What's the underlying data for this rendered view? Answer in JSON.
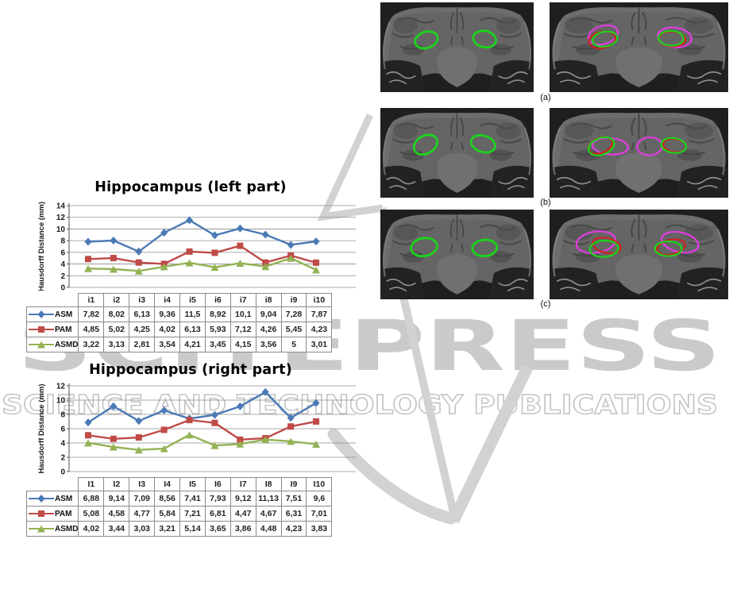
{
  "figure": {
    "left_column_heading_1": "Hippocampus (left part)",
    "left_column_heading_2": "Hippocampus (right part)"
  },
  "chart_data": [
    {
      "type": "line",
      "title": "Hippocampus (left part)",
      "xlabel": "",
      "ylabel": "Hausdorff Distance (mm)",
      "ylim": [
        0,
        14
      ],
      "ytick_step": 2,
      "grid": true,
      "legend_position": "table-left",
      "decimal_separator": ",",
      "categories": [
        "i1",
        "i2",
        "i3",
        "i4",
        "i5",
        "i6",
        "i7",
        "i8",
        "i9",
        "i10"
      ],
      "series": [
        {
          "name": "ASM",
          "color": "#4a7ab5",
          "marker": "diamond",
          "values": [
            "7,82",
            "8,02",
            "6,13",
            "9,36",
            "11,5",
            "8,92",
            "10,1",
            "9,04",
            "7,28",
            "7,87"
          ]
        },
        {
          "name": "PAM",
          "color": "#bf4b47",
          "marker": "square",
          "values": [
            "4,85",
            "5,02",
            "4,25",
            "4,02",
            "6,13",
            "5,93",
            "7,12",
            "4,26",
            "5,45",
            "4,23"
          ]
        },
        {
          "name": "ASMD",
          "color": "#93b254",
          "marker": "triangle",
          "values": [
            "3,22",
            "3,13",
            "2,81",
            "3,54",
            "4,21",
            "3,45",
            "4,15",
            "3,56",
            "5",
            "3,01"
          ]
        }
      ]
    },
    {
      "type": "line",
      "title": "Hippocampus (right part)",
      "xlabel": "",
      "ylabel": "Hausdorff Distance (mm)",
      "ylim": [
        0,
        12
      ],
      "ytick_step": 2,
      "grid": true,
      "legend_position": "table-left",
      "decimal_separator": ",",
      "categories": [
        "I1",
        "I2",
        "I3",
        "I4",
        "I5",
        "I6",
        "I7",
        "I8",
        "I9",
        "I10"
      ],
      "series": [
        {
          "name": "ASM",
          "color": "#4a7ab5",
          "marker": "diamond",
          "values": [
            "6,88",
            "9,14",
            "7,09",
            "8,56",
            "7,41",
            "7,93",
            "9,12",
            "11,13",
            "7,51",
            "9,6"
          ]
        },
        {
          "name": "PAM",
          "color": "#bf4b47",
          "marker": "square",
          "values": [
            "5,08",
            "4,58",
            "4,77",
            "5,84",
            "7,21",
            "6,81",
            "4,47",
            "4,67",
            "6,31",
            "7,01"
          ]
        },
        {
          "name": "ASMD",
          "color": "#93b254",
          "marker": "triangle",
          "values": [
            "4,02",
            "3,44",
            "3,03",
            "3,21",
            "5,14",
            "3,65",
            "3,86",
            "4,48",
            "4,23",
            "3,83"
          ]
        }
      ]
    }
  ],
  "mri": {
    "contour_colors": {
      "green": "#1bd41b",
      "red": "#cc2222",
      "magenta": "#e13ce1"
    },
    "rows": [
      {
        "label": "(a)",
        "manual_contours": [
          [
            "green",
            60,
            46,
            15,
            10,
            -15
          ],
          [
            "green",
            136,
            45,
            15,
            10,
            10
          ]
        ],
        "auto_contours": [
          [
            "magenta",
            60,
            40,
            17,
            11,
            -20
          ],
          [
            "red",
            59,
            46,
            15,
            10,
            -15
          ],
          [
            "green",
            62,
            45,
            14,
            9,
            -12
          ],
          [
            "magenta",
            140,
            43,
            19,
            12,
            8
          ],
          [
            "red",
            137,
            45,
            15,
            9,
            5
          ],
          [
            "green",
            136,
            44,
            14,
            9,
            3
          ]
        ]
      },
      {
        "label": "(b)",
        "manual_contours": [
          [
            "green",
            59,
            45,
            16,
            11,
            -25
          ],
          [
            "green",
            134,
            44,
            16,
            10,
            15
          ]
        ],
        "auto_contours": [
          [
            "magenta",
            68,
            47,
            20,
            10,
            5
          ],
          [
            "red",
            57,
            46,
            14,
            9,
            -25
          ],
          [
            "green",
            58,
            47,
            15,
            10,
            -25
          ],
          [
            "magenta",
            112,
            47,
            14,
            11,
            -5
          ],
          [
            "red",
            140,
            46,
            13,
            8,
            10
          ],
          [
            "green",
            139,
            46,
            14,
            9,
            10
          ]
        ]
      },
      {
        "label": "(c)",
        "manual_contours": [
          [
            "green",
            57,
            46,
            17,
            11,
            -8
          ],
          [
            "green",
            136,
            47,
            16,
            10,
            -3
          ]
        ],
        "auto_contours": [
          [
            "magenta",
            52,
            40,
            22,
            13,
            -10
          ],
          [
            "red",
            64,
            44,
            16,
            9,
            15
          ],
          [
            "green",
            61,
            48,
            16,
            10,
            -5
          ],
          [
            "magenta",
            146,
            40,
            21,
            12,
            15
          ],
          [
            "red",
            136,
            46,
            16,
            9,
            -15
          ],
          [
            "green",
            133,
            48,
            15,
            9,
            0
          ]
        ]
      }
    ]
  },
  "watermark": {
    "logo_text": "SCITEPRESS",
    "tagline": "SCIENCE AND TECHNOLOGY PUBLICATIONS",
    "logo_color": "#cacaca",
    "tagline_color": "#c2c2c2",
    "swoosh_color": "#d2d2d2"
  }
}
